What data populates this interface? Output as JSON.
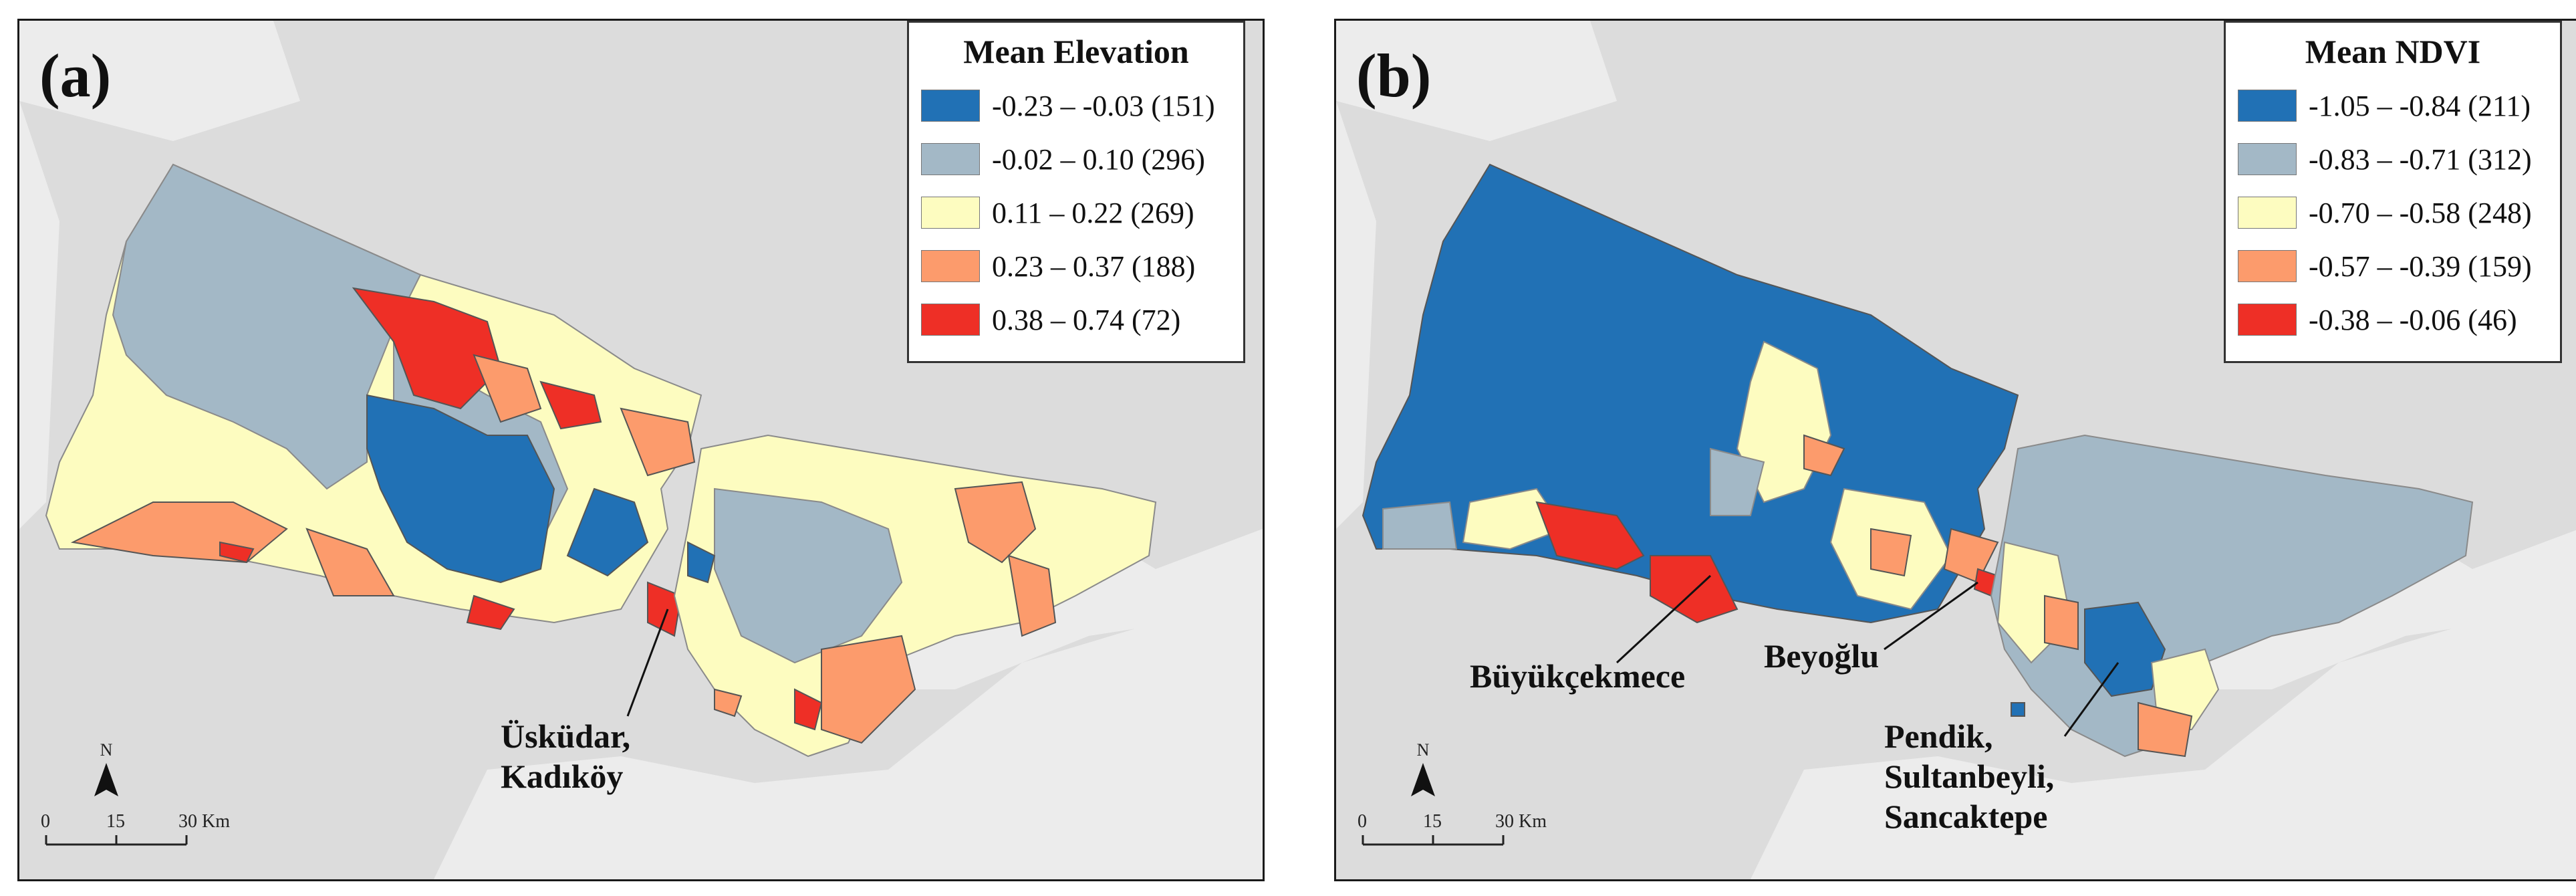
{
  "colors": {
    "water": "#dcdcdc",
    "land_bg": "#ececec",
    "class1": "#2171b5",
    "class2": "#a3b8c6",
    "class3": "#fdfcc0",
    "class4": "#fc9b6c",
    "class5": "#ee2f26"
  },
  "panel_a": {
    "letter": "(a)",
    "legend": {
      "title": "Mean Elevation",
      "items": [
        {
          "label": "-0.23 – -0.03 (151)",
          "color": "#2171b5"
        },
        {
          "label": "-0.02 – 0.10 (296)",
          "color": "#a3b8c6"
        },
        {
          "label": "0.11 – 0.22 (269)",
          "color": "#fdfcc0"
        },
        {
          "label": "0.23 – 0.37 (188)",
          "color": "#fc9b6c"
        },
        {
          "label": "0.38 – 0.74 (72)",
          "color": "#ee2f26"
        }
      ]
    },
    "callouts": [
      {
        "line1": "Üsküdar,",
        "line2": "Kadıköy"
      }
    ],
    "north": "N",
    "scale": {
      "labels": [
        "0",
        "15",
        "30 Km"
      ]
    }
  },
  "panel_b": {
    "letter": "(b)",
    "legend": {
      "title": "Mean NDVI",
      "items": [
        {
          "label": "-1.05 – -0.84 (211)",
          "color": "#2171b5"
        },
        {
          "label": "-0.83 – -0.71 (312)",
          "color": "#a3b8c6"
        },
        {
          "label": "-0.70 – -0.58 (248)",
          "color": "#fdfcc0"
        },
        {
          "label": "-0.57 – -0.39 (159)",
          "color": "#fc9b6c"
        },
        {
          "label": "-0.38 – -0.06 (46)",
          "color": "#ee2f26"
        }
      ]
    },
    "callouts": [
      {
        "line1": "Büyükçekmece"
      },
      {
        "line1": "Beyoğlu"
      },
      {
        "line1": "Pendik,",
        "line2": "Sultanbeyli,",
        "line3": "Sancaktepe"
      }
    ],
    "north": "N",
    "scale": {
      "labels": [
        "0",
        "15",
        "30 Km"
      ]
    }
  }
}
